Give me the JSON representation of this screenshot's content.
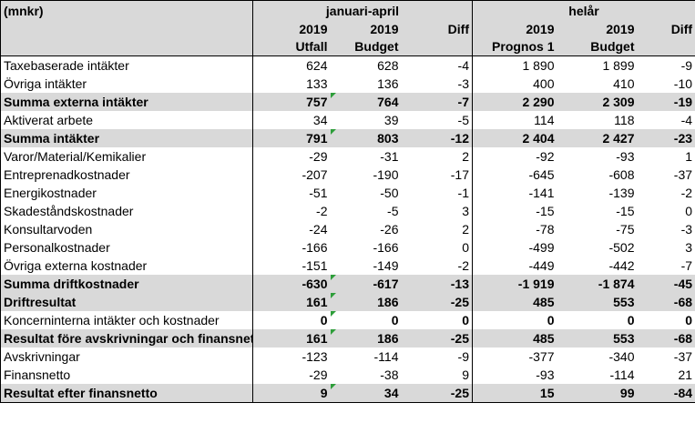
{
  "header": {
    "unit": "(mnkr)",
    "group1": "januari-april",
    "group2": "helår",
    "row2": [
      "2019",
      "2019",
      "Diff",
      "2019",
      "2019",
      "Diff"
    ],
    "row3": [
      "Utfall",
      "Budget",
      "",
      "Prognos 1",
      "Budget",
      ""
    ]
  },
  "rows": [
    {
      "label": "Taxebaserade intäkter",
      "values": [
        "624",
        "628",
        "-4",
        "1 890",
        "1 899",
        "-9"
      ],
      "bold": false
    },
    {
      "label": "Övriga intäkter",
      "values": [
        "133",
        "136",
        "-3",
        "400",
        "410",
        "-10"
      ],
      "bold": false
    },
    {
      "label": "Summa externa intäkter",
      "values": [
        "757",
        "764",
        "-7",
        "2 290",
        "2 309",
        "-19"
      ],
      "bold": true
    },
    {
      "label": "Aktiverat arbete",
      "values": [
        "34",
        "39",
        "-5",
        "114",
        "118",
        "-4"
      ],
      "bold": false
    },
    {
      "label": "Summa intäkter",
      "values": [
        "791",
        "803",
        "-12",
        "2 404",
        "2 427",
        "-23"
      ],
      "bold": true
    },
    {
      "label": "Varor/Material/Kemikalier",
      "values": [
        "-29",
        "-31",
        "2",
        "-92",
        "-93",
        "1"
      ],
      "bold": false
    },
    {
      "label": "Entreprenadkostnader",
      "values": [
        "-207",
        "-190",
        "-17",
        "-645",
        "-608",
        "-37"
      ],
      "bold": false
    },
    {
      "label": "Energikostnader",
      "values": [
        "-51",
        "-50",
        "-1",
        "-141",
        "-139",
        "-2"
      ],
      "bold": false
    },
    {
      "label": "Skadeståndskostnader",
      "values": [
        "-2",
        "-5",
        "3",
        "-15",
        "-15",
        "0"
      ],
      "bold": false
    },
    {
      "label": "Konsultarvoden",
      "values": [
        "-24",
        "-26",
        "2",
        "-78",
        "-75",
        "-3"
      ],
      "bold": false
    },
    {
      "label": "Personalkostnader",
      "values": [
        "-166",
        "-166",
        "0",
        "-499",
        "-502",
        "3"
      ],
      "bold": false
    },
    {
      "label": "Övriga externa kostnader",
      "values": [
        "-151",
        "-149",
        "-2",
        "-449",
        "-442",
        "-7"
      ],
      "bold": false
    },
    {
      "label": "Summa driftkostnader",
      "values": [
        "-630",
        "-617",
        "-13",
        "-1 919",
        "-1 874",
        "-45"
      ],
      "bold": true
    },
    {
      "label": "Driftresultat",
      "values": [
        "161",
        "186",
        "-25",
        "485",
        "553",
        "-68"
      ],
      "bold": true
    },
    {
      "label": "Koncerninterna intäkter och kostnader",
      "values": [
        "0",
        "0",
        "0",
        "0",
        "0",
        "0"
      ],
      "bold": true,
      "light_label": true
    },
    {
      "label": "Resultat före avskrivningar och finansnetto",
      "values": [
        "161",
        "186",
        "-25",
        "485",
        "553",
        "-68"
      ],
      "bold": true
    },
    {
      "label": "Avskrivningar",
      "values": [
        "-123",
        "-114",
        "-9",
        "-377",
        "-340",
        "-37"
      ],
      "bold": false
    },
    {
      "label": "Finansnetto",
      "values": [
        "-29",
        "-38",
        "9",
        "-93",
        "-114",
        "21"
      ],
      "bold": false
    },
    {
      "label": "Resultat efter finansnetto",
      "values": [
        "9",
        "34",
        "-25",
        "15",
        "99",
        "-84"
      ],
      "bold": true
    }
  ],
  "comment_marker_color": "#2e9e3a"
}
